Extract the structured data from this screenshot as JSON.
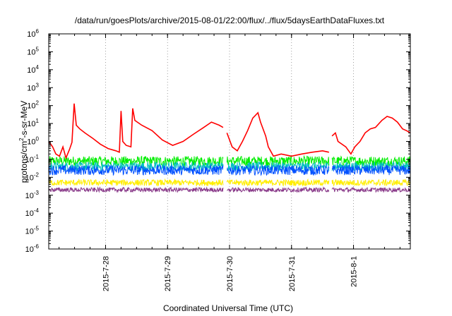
{
  "chart_data": {
    "type": "line",
    "title": "/data/run/goesPlots/archive/2015-08-01/22:00/flux/../flux/5daysEarthDataFluxes.txt",
    "xlabel": "Coordinated Universal Time (UTC)",
    "ylabel": {
      "before": "protons/cm",
      "sup": "2",
      "after": "-s-sr-MeV"
    },
    "y_scale": "log",
    "ylim": [
      1e-06,
      1000000.0
    ],
    "y_ticks": [
      {
        "value": 1000000.0,
        "base": "10",
        "exp": "6"
      },
      {
        "value": 100000.0,
        "base": "10",
        "exp": "5"
      },
      {
        "value": 10000.0,
        "base": "10",
        "exp": "4"
      },
      {
        "value": 1000.0,
        "base": "10",
        "exp": "3"
      },
      {
        "value": 100.0,
        "base": "10",
        "exp": "2"
      },
      {
        "value": 10.0,
        "base": "10",
        "exp": "1"
      },
      {
        "value": 1.0,
        "base": "10",
        "exp": "0"
      },
      {
        "value": 0.1,
        "base": "10",
        "exp": "-1"
      },
      {
        "value": 0.01,
        "base": "10",
        "exp": "-2"
      },
      {
        "value": 0.001,
        "base": "10",
        "exp": "-3"
      },
      {
        "value": 0.0001,
        "base": "10",
        "exp": "-4"
      },
      {
        "value": 1e-05,
        "base": "10",
        "exp": "-5"
      },
      {
        "value": 1e-06,
        "base": "10",
        "exp": "-6"
      }
    ],
    "xlim": [
      "2015-07-27T02:00",
      "2015-08-01T22:00"
    ],
    "x_ticks": [
      {
        "value": "2015-07-28T00:00",
        "label": "2015-7-28"
      },
      {
        "value": "2015-07-29T00:00",
        "label": "2015-7-29"
      },
      {
        "value": "2015-07-30T00:00",
        "label": "2015-7-30"
      },
      {
        "value": "2015-07-31T00:00",
        "label": "2015-7-31"
      },
      {
        "value": "2015-08-01T00:00",
        "label": "2015-8-1"
      }
    ],
    "grid": "vertical dotted at major x ticks",
    "data_gaps": [
      [
        "2015-07-29T21:30",
        "2015-07-29T23:00"
      ],
      [
        "2015-07-31T14:30",
        "2015-07-31T15:40"
      ]
    ],
    "series": [
      {
        "color": "#ff0000",
        "points": [
          [
            "2015-07-27T02:00",
            1.0
          ],
          [
            "2015-07-27T03:30",
            0.5
          ],
          [
            "2015-07-27T04:45",
            0.2
          ],
          [
            "2015-07-27T06:10",
            0.15
          ],
          [
            "2015-07-27T07:30",
            0.5
          ],
          [
            "2015-07-27T08:40",
            0.12
          ],
          [
            "2015-07-27T10:00",
            0.35
          ],
          [
            "2015-07-27T11:00",
            0.9
          ],
          [
            "2015-07-27T11:50",
            130
          ],
          [
            "2015-07-27T12:40",
            8
          ],
          [
            "2015-07-27T14:00",
            5
          ],
          [
            "2015-07-27T16:00",
            3
          ],
          [
            "2015-07-27T19:00",
            1.5
          ],
          [
            "2015-07-27T22:00",
            0.7
          ],
          [
            "2015-07-28T01:00",
            0.4
          ],
          [
            "2015-07-28T04:00",
            0.3
          ],
          [
            "2015-07-28T05:20",
            0.25
          ],
          [
            "2015-07-28T06:00",
            50
          ],
          [
            "2015-07-28T06:40",
            1.0
          ],
          [
            "2015-07-28T08:00",
            0.6
          ],
          [
            "2015-07-28T09:50",
            0.5
          ],
          [
            "2015-07-28T10:30",
            70
          ],
          [
            "2015-07-28T11:20",
            15
          ],
          [
            "2015-07-28T14:00",
            8
          ],
          [
            "2015-07-28T18:00",
            4
          ],
          [
            "2015-07-28T22:00",
            1.2
          ],
          [
            "2015-07-29T02:00",
            0.6
          ],
          [
            "2015-07-29T06:00",
            1.0
          ],
          [
            "2015-07-29T10:00",
            2.5
          ],
          [
            "2015-07-29T14:00",
            6
          ],
          [
            "2015-07-29T17:00",
            12
          ],
          [
            "2015-07-29T20:00",
            8
          ],
          [
            "2015-07-29T21:30",
            6
          ],
          [
            "2015-07-29T23:00",
            3
          ],
          [
            "2015-07-30T01:00",
            0.5
          ],
          [
            "2015-07-30T03:00",
            0.3
          ],
          [
            "2015-07-30T05:00",
            1.0
          ],
          [
            "2015-07-30T07:00",
            4
          ],
          [
            "2015-07-30T09:00",
            20
          ],
          [
            "2015-07-30T11:00",
            40
          ],
          [
            "2015-07-30T12:00",
            12
          ],
          [
            "2015-07-30T14:00",
            2
          ],
          [
            "2015-07-30T15:00",
            0.5
          ],
          [
            "2015-07-30T17:00",
            0.15
          ],
          [
            "2015-07-30T20:00",
            0.2
          ],
          [
            "2015-07-31T00:00",
            0.15
          ],
          [
            "2015-07-31T04:00",
            0.2
          ],
          [
            "2015-07-31T08:00",
            0.25
          ],
          [
            "2015-07-31T12:00",
            0.3
          ],
          [
            "2015-07-31T14:30",
            0.25
          ],
          [
            "2015-07-31T15:40",
            2
          ],
          [
            "2015-07-31T17:00",
            3
          ],
          [
            "2015-07-31T18:00",
            1.0
          ],
          [
            "2015-07-31T21:00",
            0.5
          ],
          [
            "2015-07-31T23:00",
            0.2
          ],
          [
            "2015-08-01T00:30",
            0.5
          ],
          [
            "2015-08-01T02:30",
            1.0
          ],
          [
            "2015-08-01T04:30",
            3
          ],
          [
            "2015-08-01T06:30",
            5
          ],
          [
            "2015-08-01T08:30",
            6
          ],
          [
            "2015-08-01T11:00",
            15
          ],
          [
            "2015-08-01T13:00",
            25
          ],
          [
            "2015-08-01T15:00",
            20
          ],
          [
            "2015-08-01T17:00",
            12
          ],
          [
            "2015-08-01T19:00",
            5
          ],
          [
            "2015-08-01T20:30",
            4
          ],
          [
            "2015-08-01T22:00",
            3
          ]
        ]
      },
      {
        "color": "#00ee00",
        "level": 0.08,
        "spread": 0.55
      },
      {
        "color": "#00c0c0",
        "level": 0.04,
        "spread": 0.5
      },
      {
        "color": "#0050ff",
        "level": 0.025,
        "spread": 0.55
      },
      {
        "color": "#ffee00",
        "level": 0.005,
        "spread": 0.35
      },
      {
        "color": "#8a3b8a",
        "level": 0.002,
        "spread": 0.25
      }
    ]
  }
}
